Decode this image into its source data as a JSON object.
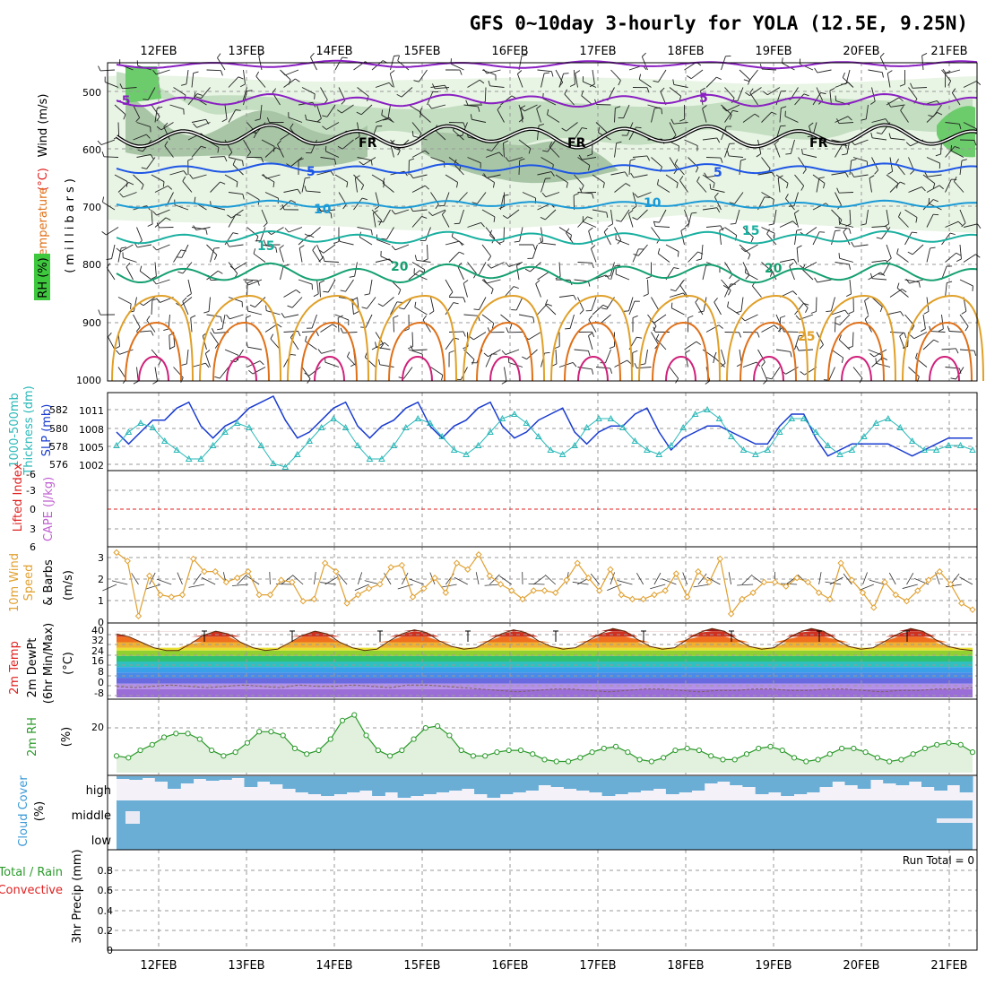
{
  "title": "GFS 0~10day 3-hourly for YOLA (12.5E, 9.25N)",
  "dates": [
    "12FEB",
    "13FEB",
    "14FEB",
    "15FEB",
    "16FEB",
    "17FEB",
    "18FEB",
    "19FEB",
    "20FEB",
    "21FEB"
  ],
  "colors": {
    "purple": "#8a1fc2",
    "freeze": "#000000",
    "blue": "#1e56e6",
    "ltblue": "#1a9ad6",
    "teal": "#1ab0a0",
    "green": "#15a070",
    "orange": "#e0a028",
    "dkorange": "#e07018",
    "magenta": "#d0207a",
    "slp": "#1a3cd0",
    "thick": "#2ab8b8",
    "wind": "#e0a030",
    "rh": "#2a9a2a",
    "cloud": "#6aaed6",
    "rain": "#e02020"
  },
  "panels": {
    "upper": {
      "labels": {
        "wind": "Wind (m/s)",
        "temp_c": "(°C)",
        "temperature": "Temperature",
        "rh": "RH (%)",
        "millibars": "(millibars)"
      },
      "yticks": [
        "500",
        "600",
        "700",
        "800",
        "900",
        "1000"
      ],
      "contour_labels": [
        {
          "text": "-5",
          "color": "purple"
        },
        {
          "text": "5",
          "color": "purple"
        },
        {
          "text": "FR",
          "color": "freeze"
        },
        {
          "text": "FR",
          "color": "freeze"
        },
        {
          "text": "FR",
          "color": "freeze"
        },
        {
          "text": "5",
          "color": "blue"
        },
        {
          "text": "5",
          "color": "blue"
        },
        {
          "text": "10",
          "color": "ltblue"
        },
        {
          "text": "10",
          "color": "ltblue"
        },
        {
          "text": "15",
          "color": "teal"
        },
        {
          "text": "15",
          "color": "teal"
        },
        {
          "text": "20",
          "color": "green"
        },
        {
          "text": "20",
          "color": "green"
        },
        {
          "text": "25",
          "color": "orange"
        }
      ]
    },
    "slp": {
      "label_left": "1000-500mb",
      "label_left2": "Thickness (dm)",
      "label_right": "SLP (mb)",
      "yticks_left": [
        "582",
        "580",
        "578",
        "576"
      ],
      "yticks_right": [
        "1011",
        "1008",
        "1005",
        "1002"
      ]
    },
    "cape": {
      "label_left": "Lifted Index",
      "label_right": "CAPE (J/kg)",
      "yticks": [
        "-6",
        "-3",
        "0",
        "3",
        "6"
      ]
    },
    "wind10": {
      "label1": "10m Wind",
      "label2": "Speed",
      "label3": "& Barbs",
      "unit": "(m/s)",
      "yticks": [
        "3",
        "2",
        "1",
        "0"
      ]
    },
    "temp2m": {
      "label1": "2m Temp",
      "label2": "2m DewPt",
      "label3": "(6hr Min/Max)",
      "unit": "(°C)",
      "yticks": [
        "40",
        "32",
        "24",
        "16",
        "8",
        "0",
        "-8"
      ]
    },
    "rh2m": {
      "label": "2m RH",
      "unit": "(%)",
      "yticks": [
        "20"
      ]
    },
    "cloud": {
      "label": "Cloud Cover",
      "unit": "(%)",
      "levels": [
        "high",
        "middle",
        "low"
      ]
    },
    "precip": {
      "label1": "Total / Rain",
      "label2": "Convective",
      "label3": "3hr Precip (mm)",
      "run_total": "Run Total = 0",
      "yticks": [
        "0.8",
        "0.6",
        "0.4",
        "0.2",
        "0"
      ]
    }
  },
  "chart_data": {
    "type": "line",
    "x_unit": "3-hourly steps",
    "x_range": [
      "11FEB 12Z",
      "21FEB 06Z"
    ],
    "series": [
      {
        "name": "SLP (mb)",
        "ylim": [
          1001,
          1013
        ],
        "values": [
          1007,
          1005,
          1007,
          1009,
          1009,
          1011,
          1012,
          1008,
          1006,
          1008,
          1009,
          1011,
          1012,
          1013,
          1009,
          1006,
          1007,
          1009,
          1011,
          1012,
          1008,
          1006,
          1008,
          1009,
          1011,
          1012,
          1008,
          1006,
          1008,
          1009,
          1011,
          1012,
          1008,
          1006,
          1007,
          1009,
          1010,
          1011,
          1007,
          1005,
          1007,
          1008,
          1008,
          1010,
          1011,
          1007,
          1004,
          1006,
          1007,
          1008,
          1008,
          1007,
          1006,
          1005,
          1005,
          1008,
          1010,
          1010,
          1006,
          1003,
          1004,
          1005,
          1005,
          1005,
          1005,
          1004,
          1003,
          1004,
          1005,
          1006,
          1006,
          1006
        ]
      },
      {
        "name": "1000-500mb Thickness (dm)",
        "ylim": [
          575.5,
          583.5
        ],
        "values": [
          578,
          579.5,
          580.5,
          580,
          578.5,
          577.5,
          576.5,
          576.5,
          578,
          579.5,
          580.5,
          580,
          578,
          576,
          575.6,
          577,
          578.5,
          580,
          581,
          580,
          578,
          576.5,
          576.5,
          578,
          580,
          581,
          580.5,
          579,
          577.5,
          577,
          578,
          579.5,
          581,
          581.5,
          580.5,
          579,
          577.5,
          577,
          578,
          580,
          581,
          581,
          580,
          578.5,
          577.5,
          577,
          578,
          580,
          581.5,
          582,
          581,
          579,
          577.5,
          577,
          577.5,
          579.5,
          581,
          581,
          579.5,
          578,
          577,
          577.5,
          579,
          580.5,
          581,
          580,
          578.5,
          577.5,
          577.5,
          578,
          578,
          577.5
        ]
      },
      {
        "name": "10m Wind Speed (m/s)",
        "ylim": [
          0,
          3.3
        ],
        "values": [
          3.2,
          2.8,
          0.2,
          2.1,
          1.2,
          1.1,
          1.2,
          2.9,
          2.3,
          2.3,
          1.8,
          2.0,
          2.3,
          1.2,
          1.2,
          1.9,
          1.8,
          0.9,
          1.0,
          2.7,
          2.3,
          0.8,
          1.2,
          1.5,
          1.7,
          2.5,
          2.6,
          1.1,
          1.5,
          2.0,
          1.3,
          2.7,
          2.4,
          3.1,
          2.1,
          1.7,
          1.4,
          1.0,
          1.4,
          1.4,
          1.3,
          1.9,
          2.7,
          2.0,
          1.4,
          2.4,
          1.2,
          1.0,
          1.0,
          1.2,
          1.4,
          2.2,
          1.1,
          2.3,
          1.8,
          2.9,
          0.3,
          1.0,
          1.3,
          1.8,
          1.8,
          1.6,
          2.0,
          1.8,
          1.3,
          1.0,
          2.7,
          1.9,
          1.3,
          0.6,
          1.8,
          1.2,
          0.9,
          1.4,
          1.9,
          2.3,
          1.7,
          0.8,
          0.5
        ]
      },
      {
        "name": "2m RH (%)",
        "ylim": [
          0,
          38
        ],
        "values": [
          9,
          8,
          12,
          15,
          19,
          21,
          21,
          18,
          12,
          9,
          11,
          16,
          22,
          22,
          20,
          13,
          10,
          12,
          18,
          28,
          31,
          20,
          12,
          9,
          12,
          18,
          24,
          25,
          20,
          12,
          9,
          9,
          11,
          12,
          12,
          10,
          7,
          6,
          6,
          8,
          11,
          13,
          14,
          11,
          7,
          6,
          8,
          12,
          13,
          12,
          9,
          7,
          7,
          10,
          13,
          14,
          12,
          8,
          6,
          7,
          10,
          13,
          13,
          11,
          8,
          6,
          7,
          10,
          13,
          15,
          16,
          15,
          11
        ]
      },
      {
        "name": "2m Temp (°C)",
        "ylim": [
          -10,
          42
        ],
        "values": [
          36,
          34,
          30,
          26,
          24,
          24,
          29,
          35,
          38,
          36,
          30,
          26,
          24,
          25,
          30,
          35,
          38,
          36,
          30,
          26,
          24,
          25,
          31,
          36,
          39,
          37,
          31,
          27,
          25,
          26,
          31,
          36,
          39,
          37,
          31,
          27,
          25,
          26,
          31,
          36,
          40,
          38,
          32,
          27,
          25,
          26,
          32,
          37,
          40,
          38,
          32,
          27,
          25,
          26,
          32,
          37,
          40,
          38,
          32,
          27,
          25,
          26,
          31,
          36,
          40,
          38,
          32,
          27,
          25,
          24
        ]
      },
      {
        "name": "2m DewPt (°C)",
        "ylim": [
          -10,
          42
        ],
        "values": [
          -2,
          -3,
          -2,
          -1,
          -2,
          -3,
          -2,
          -1,
          -2,
          -3,
          -1,
          -2,
          -2,
          -1,
          -2,
          -3,
          -1,
          -1,
          -2,
          -3,
          -4,
          -5,
          -6,
          -5,
          -4,
          -4,
          -5,
          -6,
          -5,
          -4,
          -4,
          -5,
          -6,
          -5,
          -5,
          -4,
          -4,
          -5,
          -5,
          -4,
          -4,
          -5,
          -6,
          -5,
          -5,
          -4,
          -4,
          -3
        ]
      }
    ]
  }
}
